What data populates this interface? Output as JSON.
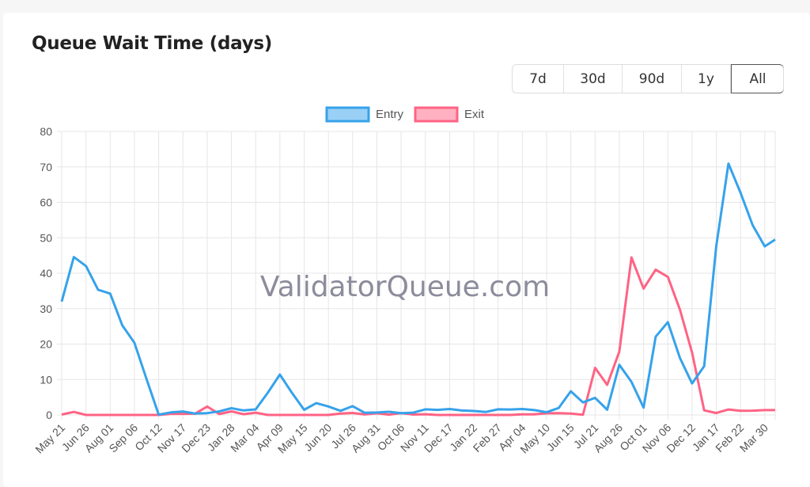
{
  "header": {
    "title": "Queue Wait Time (days)"
  },
  "range_buttons": [
    {
      "label": "7d"
    },
    {
      "label": "30d"
    },
    {
      "label": "90d"
    },
    {
      "label": "1y"
    },
    {
      "label": "All",
      "active": true
    }
  ],
  "watermark": "ValidatorQueue.com",
  "chart_data": {
    "type": "line",
    "title": "",
    "xlabel": "",
    "ylabel": "",
    "ylim": [
      0,
      80
    ],
    "yticks": [
      0,
      10,
      20,
      30,
      40,
      50,
      60,
      70,
      80
    ],
    "grid": true,
    "legend": "top",
    "xtick_labels": [
      "May 21",
      "Jun 26",
      "Aug 01",
      "Sep 06",
      "Oct 12",
      "Nov 17",
      "Dec 23",
      "Jan 28",
      "Mar 04",
      "Apr 09",
      "May 15",
      "Jun 20",
      "Jul 26",
      "Aug 31",
      "Oct 06",
      "Nov 11",
      "Dec 17",
      "Jan 22",
      "Feb 27",
      "Apr 04",
      "May 10",
      "Jun 15",
      "Jul 21",
      "Aug 26",
      "Oct 01",
      "Nov 06",
      "Dec 12",
      "Jan 17",
      "Feb 22",
      "Mar 30"
    ],
    "x": [
      "May 21",
      "Jun 08",
      "Jun 26",
      "Jul 14",
      "Aug 01",
      "Aug 19",
      "Sep 06",
      "Sep 24",
      "Oct 12",
      "Oct 30",
      "Nov 17",
      "Dec 05",
      "Dec 23",
      "Jan 10",
      "Jan 28",
      "Feb 15",
      "Mar 04",
      "Mar 22",
      "Apr 09",
      "Apr 27",
      "May 15",
      "Jun 02",
      "Jun 20",
      "Jul 08",
      "Jul 26",
      "Aug 13",
      "Aug 31",
      "Sep 18",
      "Oct 06",
      "Oct 24",
      "Nov 11",
      "Nov 29",
      "Dec 17",
      "Jan 04",
      "Jan 22",
      "Feb 09",
      "Feb 27",
      "Mar 17",
      "Apr 04",
      "Apr 22",
      "May 10",
      "May 28",
      "Jun 15",
      "Jul 03",
      "Jul 21",
      "Aug 08",
      "Aug 26",
      "Sep 13",
      "Oct 01",
      "Oct 19",
      "Nov 06",
      "Nov 24",
      "Dec 12",
      "Dec 30",
      "Jan 17",
      "Feb 04",
      "Feb 22",
      "Mar 12",
      "Mar 30",
      "Apr 13"
    ],
    "series": [
      {
        "name": "Entry",
        "color": "#36a2eb",
        "fill": "#9ad0f5",
        "values": [
          32,
          44,
          42,
          35,
          34,
          25,
          20,
          10,
          0.5,
          1,
          1,
          0.5,
          1,
          1,
          2,
          1,
          1,
          6,
          11,
          6,
          1,
          3,
          2,
          1.5,
          3,
          1,
          1,
          1.5,
          1,
          1,
          1,
          1,
          1.5,
          1,
          1,
          0.5,
          1,
          1,
          2,
          1.5,
          1,
          2,
          7,
          4,
          5,
          1,
          14,
          9,
          2,
          22,
          26,
          16,
          9,
          14,
          48,
          71,
          63,
          54,
          48,
          50
        ]
      },
      {
        "name": "Exit",
        "color": "#ff6384",
        "fill": "#ffb1c1",
        "values": [
          0,
          1,
          0,
          0,
          0,
          0,
          0,
          0,
          0,
          0,
          0.3,
          0,
          2,
          0,
          0.5,
          0,
          1,
          0,
          0,
          0,
          0,
          0,
          0,
          0,
          0,
          0,
          0,
          0,
          0,
          0,
          0,
          0,
          0,
          0,
          0,
          0,
          0,
          0,
          0,
          0,
          0,
          0,
          0,
          0,
          13,
          8,
          18,
          45,
          36,
          41,
          39,
          30,
          18,
          1,
          0.5,
          1,
          1,
          1,
          1,
          1
        ]
      }
    ]
  }
}
